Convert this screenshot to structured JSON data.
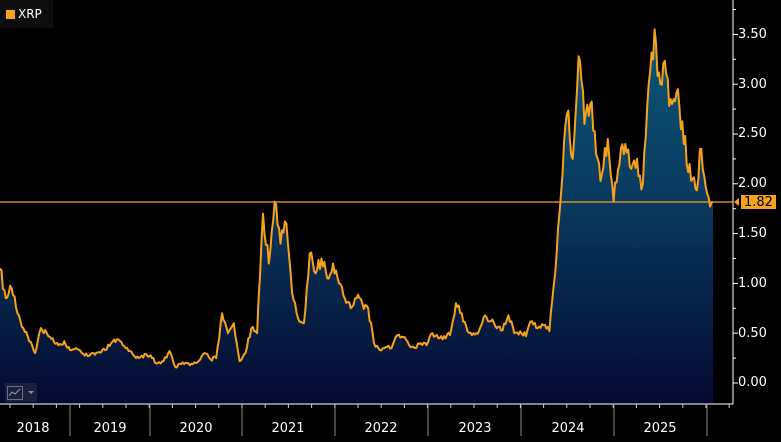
{
  "legend": {
    "label": "XRP",
    "color": "#f7a21b"
  },
  "last_value": {
    "label": "1.82",
    "value": 1.82
  },
  "colors": {
    "line": "#f7a21b",
    "background": "#000000",
    "fill_top": "#0b4a6b",
    "fill_bottom": "#050a30",
    "axis": "#ffffff",
    "divider": "#8a8a8a"
  },
  "y_axis": {
    "labels": [
      "3.50",
      "3.00",
      "2.50",
      "2.00",
      "1.50",
      "1.00",
      "0.50",
      "0.00"
    ],
    "values": [
      3.5,
      3.0,
      2.5,
      2.0,
      1.5,
      1.0,
      0.5,
      0.0
    ]
  },
  "x_axis": {
    "labels": [
      "2018",
      "2019",
      "2020",
      "2021",
      "2022",
      "2023",
      "2024",
      "2025"
    ]
  },
  "toolbar": {
    "chart_type_icon": "line-chart-icon"
  },
  "chart_data": {
    "type": "area",
    "title": "",
    "legend": [
      "XRP"
    ],
    "xlabel": "",
    "ylabel": "",
    "ylim": [
      -0.2,
      3.8
    ],
    "grid": false,
    "legend_position": "top-left",
    "last_value": 1.82,
    "reference_line": 1.82,
    "x_ticks": [
      "2018",
      "2019",
      "2020",
      "2021",
      "2022",
      "2023",
      "2024",
      "2025"
    ],
    "y_ticks": [
      0.0,
      0.5,
      1.0,
      1.5,
      2.0,
      2.5,
      3.0,
      3.5
    ],
    "series": [
      {
        "name": "XRP",
        "points": [
          [
            "2018-05",
            1.15
          ],
          [
            "2018-06",
            0.85
          ],
          [
            "2018-06",
            0.95
          ],
          [
            "2018-07",
            0.7
          ],
          [
            "2018-07",
            0.55
          ],
          [
            "2018-08",
            0.42
          ],
          [
            "2018-08",
            0.3
          ],
          [
            "2018-09",
            0.55
          ],
          [
            "2018-09",
            0.5
          ],
          [
            "2018-10",
            0.45
          ],
          [
            "2018-10",
            0.38
          ],
          [
            "2018-11",
            0.42
          ],
          [
            "2018-12",
            0.33
          ],
          [
            "2018-12",
            0.35
          ],
          [
            "2019-01",
            0.3
          ],
          [
            "2019-01",
            0.27
          ],
          [
            "2019-02",
            0.3
          ],
          [
            "2019-03",
            0.31
          ],
          [
            "2019-04",
            0.33
          ],
          [
            "2019-05",
            0.4
          ],
          [
            "2019-06",
            0.44
          ],
          [
            "2019-06",
            0.38
          ],
          [
            "2019-07",
            0.32
          ],
          [
            "2019-08",
            0.27
          ],
          [
            "2019-09",
            0.26
          ],
          [
            "2019-10",
            0.29
          ],
          [
            "2019-11",
            0.25
          ],
          [
            "2019-12",
            0.2
          ],
          [
            "2020-01",
            0.22
          ],
          [
            "2020-02",
            0.32
          ],
          [
            "2020-03",
            0.16
          ],
          [
            "2020-04",
            0.19
          ],
          [
            "2020-05",
            0.2
          ],
          [
            "2020-06",
            0.19
          ],
          [
            "2020-07",
            0.22
          ],
          [
            "2020-08",
            0.3
          ],
          [
            "2020-09",
            0.24
          ],
          [
            "2020-10",
            0.25
          ],
          [
            "2020-11",
            0.7
          ],
          [
            "2020-11",
            0.5
          ],
          [
            "2020-12",
            0.6
          ],
          [
            "2020-12",
            0.22
          ],
          [
            "2021-01",
            0.3
          ],
          [
            "2021-02",
            0.55
          ],
          [
            "2021-03",
            0.5
          ],
          [
            "2021-04",
            1.7
          ],
          [
            "2021-04",
            1.2
          ],
          [
            "2021-04",
            1.82
          ],
          [
            "2021-05",
            1.4
          ],
          [
            "2021-05",
            1.6
          ],
          [
            "2021-06",
            0.9
          ],
          [
            "2021-06",
            0.65
          ],
          [
            "2021-07",
            0.6
          ],
          [
            "2021-08",
            1.3
          ],
          [
            "2021-09",
            1.1
          ],
          [
            "2021-09",
            1.25
          ],
          [
            "2021-10",
            1.05
          ],
          [
            "2021-11",
            1.2
          ],
          [
            "2021-11",
            1.0
          ],
          [
            "2021-12",
            0.85
          ],
          [
            "2022-01",
            0.75
          ],
          [
            "2022-02",
            0.85
          ],
          [
            "2022-03",
            0.8
          ],
          [
            "2022-04",
            0.75
          ],
          [
            "2022-05",
            0.4
          ],
          [
            "2022-06",
            0.33
          ],
          [
            "2022-07",
            0.36
          ],
          [
            "2022-08",
            0.35
          ],
          [
            "2022-09",
            0.48
          ],
          [
            "2022-10",
            0.46
          ],
          [
            "2022-11",
            0.38
          ],
          [
            "2022-12",
            0.35
          ],
          [
            "2023-01",
            0.4
          ],
          [
            "2023-02",
            0.38
          ],
          [
            "2023-03",
            0.5
          ],
          [
            "2023-04",
            0.45
          ],
          [
            "2023-05",
            0.47
          ],
          [
            "2023-06",
            0.48
          ],
          [
            "2023-07",
            0.8
          ],
          [
            "2023-07",
            0.7
          ],
          [
            "2023-08",
            0.52
          ],
          [
            "2023-09",
            0.5
          ],
          [
            "2023-10",
            0.53
          ],
          [
            "2023-11",
            0.68
          ],
          [
            "2023-12",
            0.62
          ],
          [
            "2024-01",
            0.55
          ],
          [
            "2024-02",
            0.53
          ],
          [
            "2024-03",
            0.68
          ],
          [
            "2024-04",
            0.5
          ],
          [
            "2024-05",
            0.52
          ],
          [
            "2024-06",
            0.47
          ],
          [
            "2024-07",
            0.62
          ],
          [
            "2024-08",
            0.55
          ],
          [
            "2024-09",
            0.58
          ],
          [
            "2024-10",
            0.52
          ],
          [
            "2024-11",
            1.1
          ],
          [
            "2024-11",
            1.9
          ],
          [
            "2024-12",
            2.7
          ],
          [
            "2024-12",
            2.25
          ],
          [
            "2025-01",
            3.28
          ],
          [
            "2025-01",
            2.6
          ],
          [
            "2025-02",
            2.8
          ],
          [
            "2025-02",
            2.3
          ],
          [
            "2025-03",
            2.1
          ],
          [
            "2025-03",
            2.45
          ],
          [
            "2025-04",
            1.82
          ],
          [
            "2025-04",
            2.2
          ],
          [
            "2025-05",
            2.4
          ],
          [
            "2025-05",
            2.15
          ],
          [
            "2025-06",
            2.25
          ],
          [
            "2025-06",
            2.0
          ],
          [
            "2025-07",
            3.0
          ],
          [
            "2025-07",
            3.55
          ],
          [
            "2025-08",
            3.0
          ],
          [
            "2025-08",
            3.1
          ],
          [
            "2025-09",
            2.8
          ],
          [
            "2025-09",
            2.95
          ],
          [
            "2025-10",
            2.4
          ],
          [
            "2025-10",
            2.2
          ],
          [
            "2025-11",
            1.95
          ],
          [
            "2025-11",
            2.35
          ],
          [
            "2025-12",
            1.9
          ],
          [
            "2025-12",
            1.82
          ]
        ]
      }
    ]
  }
}
